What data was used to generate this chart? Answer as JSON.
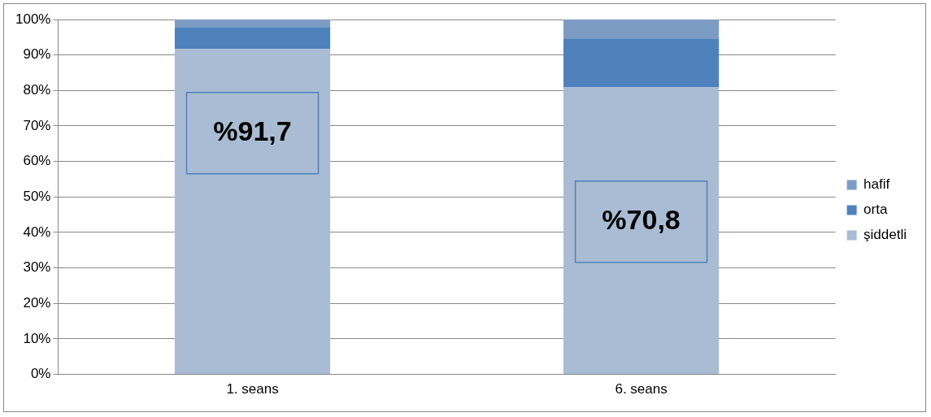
{
  "chart_data": {
    "type": "bar",
    "stacked": true,
    "categories": [
      "1. seans",
      "6. seans"
    ],
    "series": [
      {
        "name": "şiddetli",
        "color": "#a9bcd3",
        "values": [
          91.7,
          81
        ]
      },
      {
        "name": "orta",
        "color": "#4f81bd",
        "values": [
          6,
          13.7
        ]
      },
      {
        "name": "hafif",
        "color": "#7c9cc4",
        "values": [
          2.3,
          5.3
        ]
      }
    ],
    "ylim": [
      0,
      100
    ],
    "yticks": [
      {
        "value": 0,
        "label": "0%"
      },
      {
        "value": 10,
        "label": "10%"
      },
      {
        "value": 20,
        "label": "20%"
      },
      {
        "value": 30,
        "label": "30%"
      },
      {
        "value": 40,
        "label": "40%"
      },
      {
        "value": 50,
        "label": "50%"
      },
      {
        "value": 60,
        "label": "60%"
      },
      {
        "value": 70,
        "label": "70%"
      },
      {
        "value": 80,
        "label": "80%"
      },
      {
        "value": 90,
        "label": "90%"
      },
      {
        "value": 100,
        "label": "100%"
      }
    ],
    "grid": "y",
    "legend": "right",
    "annotations": [
      "%91,7",
      "%70,8"
    ]
  }
}
